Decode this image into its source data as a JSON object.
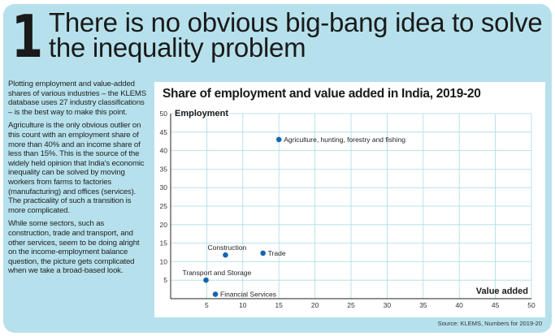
{
  "headline": {
    "number": "1",
    "text": "There is no obvious big-bang idea to solve the inequality problem"
  },
  "body": {
    "paragraphs": [
      "Plotting employment and value-added shares of various industries – the KLEMS database uses 27 industry classifications – is the best way to make this point.",
      "Agriculture is the only obvious outlier on this count with an employment share of more than 40% and an income share of less than 15%. This is the source of the widely held opinion that India's economic inequality can be solved by moving workers from farms to factories (manufacturing) and offices (services). The practicality of such a transition is more complicated.",
      "While some sectors, such as construction, trade and transport, and other services, seem to be doing alright on the income-employment balance question, the picture gets complicated when we take a broad-based look."
    ]
  },
  "source": "Source: KLEMS, Numbers for 2019-20",
  "colors": {
    "panel_bg": "#b6e1ec",
    "grid": "#a9dbe6",
    "point": "#1565b0"
  },
  "chart_data": {
    "type": "scatter",
    "title": "Share of employment and value added in India, 2019-20",
    "xlabel": "Value added",
    "ylabel": "Employment",
    "xlim": [
      0,
      50
    ],
    "ylim": [
      0,
      50
    ],
    "xticks": [
      5,
      10,
      15,
      20,
      25,
      30,
      35,
      40,
      45,
      50
    ],
    "yticks": [
      5,
      10,
      15,
      20,
      25,
      30,
      35,
      40,
      45,
      50
    ],
    "grid": true,
    "points": [
      {
        "label": "Agriculture, hunting, forestry and fishing",
        "x": 15.0,
        "y": 43.0,
        "label_pos": "right"
      },
      {
        "label": "Construction",
        "x": 7.6,
        "y": 11.8,
        "label_pos": "above"
      },
      {
        "label": "Trade",
        "x": 12.8,
        "y": 12.3,
        "label_pos": "right"
      },
      {
        "label": "Transport and Storage",
        "x": 4.9,
        "y": 5.0,
        "label_pos": "above"
      },
      {
        "label": "Financial Services",
        "x": 6.2,
        "y": 1.2,
        "label_pos": "right"
      }
    ]
  }
}
